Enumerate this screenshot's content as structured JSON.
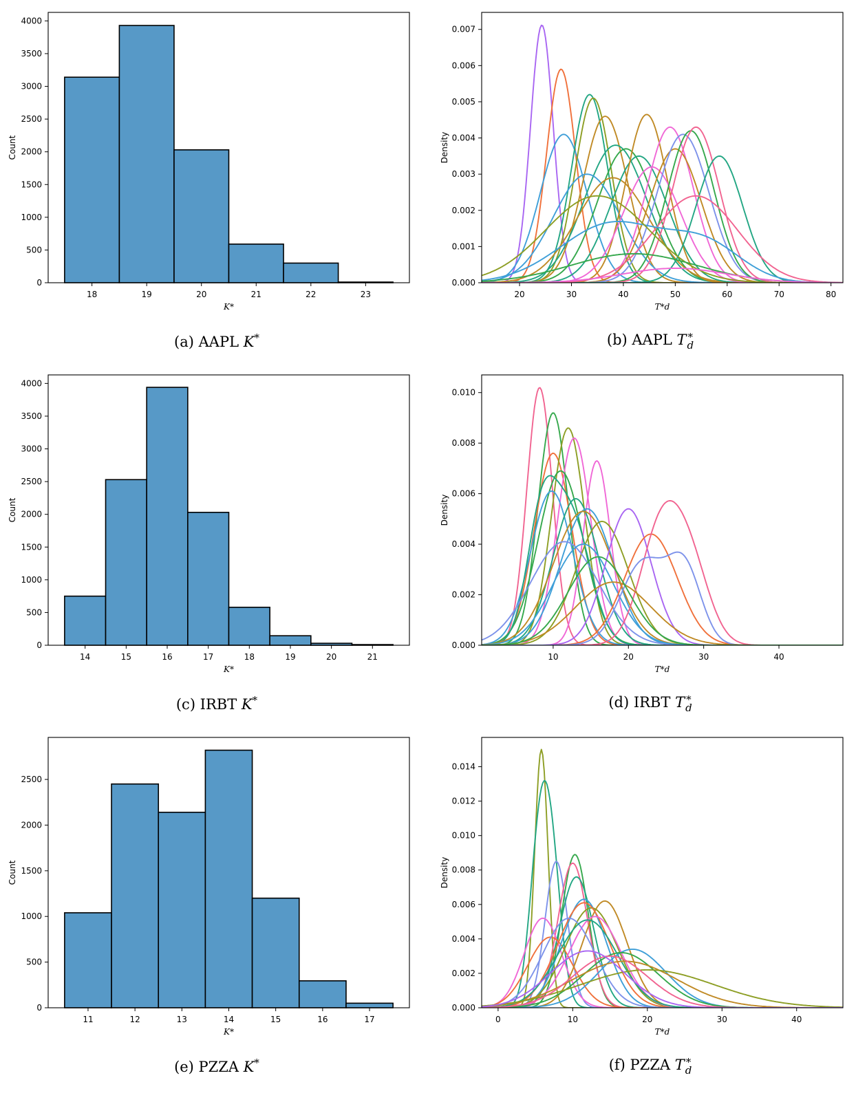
{
  "palette": [
    "#a865f2",
    "#f0703a",
    "#22a683",
    "#8d9e24",
    "#c08a25",
    "#f067d6",
    "#3f9fd8",
    "#f16390",
    "#7d92ea",
    "#35a84c"
  ],
  "bar_color": "#5799c7",
  "panels": [
    {
      "caption_prefix": "(a) AAPL",
      "caption_math": "K",
      "caption_sup": "*",
      "caption_sub": "",
      "chart_data": {
        "type": "bar",
        "title": "",
        "xlabel": "K*",
        "ylabel": "Count",
        "categories": [
          18,
          19,
          20,
          21,
          22,
          23
        ],
        "values": [
          3140,
          3930,
          2030,
          590,
          300,
          10
        ],
        "xlim": [
          17.2,
          23.8
        ],
        "ylim": [
          0,
          4130
        ],
        "xticks": [
          18,
          19,
          20,
          21,
          22,
          23
        ],
        "yticks": [
          0,
          500,
          1000,
          1500,
          2000,
          2500,
          3000,
          3500,
          4000
        ],
        "ytick_labels": [
          "0",
          "500",
          "1000",
          "1500",
          "2000",
          "2500",
          "3000",
          "3500",
          "4000"
        ],
        "grid": false
      }
    },
    {
      "caption_prefix": "(b) AAPL",
      "caption_math": "T",
      "caption_sup": "*",
      "caption_sub": "d",
      "chart_data": {
        "type": "line",
        "title": "",
        "xlabel": "T*d",
        "ylabel": "Density",
        "xlim": [
          12.7,
          82.3
        ],
        "ylim": [
          0,
          0.00747
        ],
        "xticks": [
          20,
          30,
          40,
          50,
          60,
          70,
          80
        ],
        "yticks": [
          0,
          0.001,
          0.002,
          0.003,
          0.004,
          0.005,
          0.006,
          0.007
        ],
        "ytick_labels": [
          "0.000",
          "0.001",
          "0.002",
          "0.003",
          "0.004",
          "0.005",
          "0.006",
          "0.007"
        ],
        "grid": false,
        "series": [
          {
            "color": "#a865f2",
            "components": [
              [
                24.3,
                2.2,
                0.00712
              ]
            ]
          },
          {
            "color": "#f0703a",
            "components": [
              [
                28,
                2.8,
                0.0059
              ]
            ]
          },
          {
            "color": "#3f9fd8",
            "components": [
              [
                28.5,
                4.5,
                0.0041
              ]
            ]
          },
          {
            "color": "#22a683",
            "components": [
              [
                33.5,
                3.5,
                0.0052
              ]
            ]
          },
          {
            "color": "#8d9e24",
            "components": [
              [
                34.2,
                3.5,
                0.0051
              ]
            ]
          },
          {
            "color": "#c08a25",
            "components": [
              [
                36.5,
                4.3,
                0.0046
              ]
            ]
          },
          {
            "color": "#22a683",
            "components": [
              [
                38.5,
                6,
                0.0038
              ]
            ]
          },
          {
            "color": "#35a84c",
            "components": [
              [
                40.5,
                5.5,
                0.0037
              ]
            ]
          },
          {
            "color": "#3f9fd8",
            "components": [
              [
                33,
                6.5,
                0.003
              ]
            ]
          },
          {
            "color": "#c08a25",
            "components": [
              [
                38,
                7,
                0.0029
              ]
            ]
          },
          {
            "color": "#22a683",
            "components": [
              [
                43,
                5.5,
                0.0035
              ]
            ]
          },
          {
            "color": "#c08a25",
            "components": [
              [
                44.5,
                4,
                0.00465
              ]
            ]
          },
          {
            "color": "#f067d6",
            "components": [
              [
                45.5,
                5.5,
                0.0032
              ]
            ]
          },
          {
            "color": "#f067d6",
            "components": [
              [
                49,
                4.5,
                0.0043
              ]
            ]
          },
          {
            "color": "#c08a25",
            "components": [
              [
                50,
                5,
                0.0037
              ]
            ]
          },
          {
            "color": "#7d92ea",
            "components": [
              [
                51.5,
                5,
                0.0041
              ]
            ]
          },
          {
            "color": "#35a84c",
            "components": [
              [
                53,
                4.5,
                0.0042
              ]
            ]
          },
          {
            "color": "#f16390",
            "components": [
              [
                54,
                4.5,
                0.0043
              ]
            ]
          },
          {
            "color": "#22a683",
            "components": [
              [
                58.5,
                4.5,
                0.0035
              ]
            ]
          },
          {
            "color": "#f16390",
            "components": [
              [
                54,
                8,
                0.0024
              ]
            ]
          },
          {
            "color": "#3f9fd8",
            "components": [
              [
                38,
                10,
                0.00165
              ],
              [
                56,
                7,
                0.00095
              ]
            ]
          },
          {
            "color": "#8d9e24",
            "components": [
              [
                35,
                10,
                0.0024
              ]
            ]
          },
          {
            "color": "#35a84c",
            "components": [
              [
                42,
                12,
                0.0008
              ]
            ]
          },
          {
            "color": "#f067d6",
            "components": [
              [
                50,
                10,
                0.0004
              ]
            ]
          }
        ]
      }
    },
    {
      "caption_prefix": "(c) IRBT",
      "caption_math": "K",
      "caption_sup": "*",
      "caption_sub": "",
      "chart_data": {
        "type": "bar",
        "title": "",
        "xlabel": "K*",
        "ylabel": "Count",
        "categories": [
          14,
          15,
          16,
          17,
          18,
          19,
          20,
          21
        ],
        "values": [
          750,
          2530,
          3940,
          2030,
          580,
          145,
          30,
          10
        ],
        "xlim": [
          13.1,
          21.9
        ],
        "ylim": [
          0,
          4130
        ],
        "xticks": [
          14,
          15,
          16,
          17,
          18,
          19,
          20,
          21
        ],
        "yticks": [
          0,
          500,
          1000,
          1500,
          2000,
          2500,
          3000,
          3500,
          4000
        ],
        "ytick_labels": [
          "0",
          "500",
          "1000",
          "1500",
          "2000",
          "2500",
          "3000",
          "3500",
          "4000"
        ],
        "grid": false
      }
    },
    {
      "caption_prefix": "(d) IRBT",
      "caption_math": "T",
      "caption_sup": "*",
      "caption_sub": "d",
      "chart_data": {
        "type": "line",
        "title": "",
        "xlabel": "T*d",
        "ylabel": "Density",
        "xlim": [
          0.5,
          48.5
        ],
        "ylim": [
          0,
          0.0107
        ],
        "xticks": [
          10,
          20,
          30,
          40
        ],
        "yticks": [
          0,
          0.002,
          0.004,
          0.006,
          0.008,
          0.01
        ],
        "ytick_labels": [
          "0.000",
          "0.002",
          "0.004",
          "0.006",
          "0.008",
          "0.010"
        ],
        "grid": false,
        "series": [
          {
            "color": "#f16390",
            "components": [
              [
                8.2,
                1.7,
                0.0102
              ]
            ]
          },
          {
            "color": "#35a84c",
            "components": [
              [
                10,
                2,
                0.0092
              ]
            ]
          },
          {
            "color": "#f0703a",
            "components": [
              [
                10,
                2.5,
                0.0076
              ]
            ]
          },
          {
            "color": "#8d9e24",
            "components": [
              [
                12,
                2.2,
                0.0086
              ]
            ]
          },
          {
            "color": "#f067d6",
            "components": [
              [
                12.8,
                2.2,
                0.0082
              ]
            ]
          },
          {
            "color": "#f067d6",
            "components": [
              [
                15.8,
                1.8,
                0.0073
              ]
            ]
          },
          {
            "color": "#35a84c",
            "components": [
              [
                11,
                3,
                0.0069
              ]
            ]
          },
          {
            "color": "#3f9fd8",
            "components": [
              [
                9.8,
                2.8,
                0.0061
              ]
            ]
          },
          {
            "color": "#22a683",
            "components": [
              [
                8.5,
                2,
                0.0049
              ],
              [
                12.5,
                2.5,
                0.0049
              ]
            ]
          },
          {
            "color": "#22a683",
            "components": [
              [
                13,
                3,
                0.0058
              ]
            ]
          },
          {
            "color": "#3f9fd8",
            "components": [
              [
                14.5,
                3.5,
                0.0054
              ]
            ]
          },
          {
            "color": "#c08a25",
            "components": [
              [
                14,
                4,
                0.0053
              ]
            ]
          },
          {
            "color": "#8d9e24",
            "components": [
              [
                16.5,
                3.5,
                0.0049
              ]
            ]
          },
          {
            "color": "#7d92ea",
            "components": [
              [
                11.5,
                4.5,
                0.0041
              ]
            ]
          },
          {
            "color": "#3f9fd8",
            "components": [
              [
                14,
                4,
                0.004
              ]
            ]
          },
          {
            "color": "#a865f2",
            "components": [
              [
                20,
                3,
                0.0054
              ]
            ]
          },
          {
            "color": "#f0703a",
            "components": [
              [
                23,
                3.5,
                0.0044
              ]
            ]
          },
          {
            "color": "#f16390",
            "components": [
              [
                24.5,
                2.8,
                0.0048
              ],
              [
                28.5,
                2.5,
                0.0025
              ]
            ]
          },
          {
            "color": "#7d92ea",
            "components": [
              [
                22,
                3,
                0.0033
              ],
              [
                27.5,
                2.2,
                0.0029
              ]
            ]
          },
          {
            "color": "#c08a25",
            "components": [
              [
                18,
                5,
                0.0025
              ]
            ]
          },
          {
            "color": "#35a84c",
            "components": [
              [
                16,
                4,
                0.0035
              ]
            ]
          }
        ]
      }
    },
    {
      "caption_prefix": "(e) PZZA",
      "caption_math": "K",
      "caption_sup": "*",
      "caption_sub": "",
      "chart_data": {
        "type": "bar",
        "title": "",
        "xlabel": "K*",
        "ylabel": "Count",
        "categories": [
          11,
          12,
          13,
          14,
          15,
          16,
          17
        ],
        "values": [
          1040,
          2450,
          2140,
          2820,
          1200,
          295,
          50
        ],
        "xlim": [
          10.15,
          17.85
        ],
        "ylim": [
          0,
          2960
        ],
        "xticks": [
          11,
          12,
          13,
          14,
          15,
          16,
          17
        ],
        "yticks": [
          0,
          500,
          1000,
          1500,
          2000,
          2500
        ],
        "ytick_labels": [
          "0",
          "500",
          "1000",
          "1500",
          "2000",
          "2500"
        ],
        "grid": false
      }
    },
    {
      "caption_prefix": "(f) PZZA",
      "caption_math": "T",
      "caption_sup": "*",
      "caption_sub": "d",
      "chart_data": {
        "type": "line",
        "title": "",
        "xlabel": "T*d",
        "ylabel": "Density",
        "xlim": [
          -2.2,
          46.2
        ],
        "ylim": [
          0,
          0.0157
        ],
        "xticks": [
          0,
          10,
          20,
          30,
          40
        ],
        "yticks": [
          0,
          0.002,
          0.004,
          0.006,
          0.008,
          0.01,
          0.012,
          0.014
        ],
        "ytick_labels": [
          "0.000",
          "0.002",
          "0.004",
          "0.006",
          "0.008",
          "0.010",
          "0.012",
          "0.014"
        ],
        "grid": false,
        "series": [
          {
            "color": "#8d9e24",
            "components": [
              [
                5.8,
                0.9,
                0.015
              ]
            ]
          },
          {
            "color": "#22a683",
            "components": [
              [
                5.5,
                1.3,
                0.0088
              ],
              [
                7.2,
                1.3,
                0.0075
              ]
            ]
          },
          {
            "color": "#7d92ea",
            "components": [
              [
                7.8,
                1.5,
                0.0085
              ]
            ]
          },
          {
            "color": "#35a84c",
            "components": [
              [
                10.3,
                1.8,
                0.0089
              ]
            ]
          },
          {
            "color": "#f16390",
            "components": [
              [
                10,
                2,
                0.0084
              ]
            ]
          },
          {
            "color": "#22a683",
            "components": [
              [
                10.5,
                2.3,
                0.0076
              ]
            ]
          },
          {
            "color": "#f067d6",
            "components": [
              [
                6,
                2.5,
                0.0052
              ]
            ]
          },
          {
            "color": "#f0703a",
            "components": [
              [
                7,
                3,
                0.0041
              ]
            ]
          },
          {
            "color": "#3f9fd8",
            "components": [
              [
                11.5,
                3,
                0.0063
              ]
            ]
          },
          {
            "color": "#c08a25",
            "components": [
              [
                14.3,
                3,
                0.0062
              ]
            ]
          },
          {
            "color": "#8d9e24",
            "components": [
              [
                12.5,
                3.5,
                0.0058
              ]
            ]
          },
          {
            "color": "#f0703a",
            "components": [
              [
                11.5,
                3.5,
                0.0061
              ]
            ]
          },
          {
            "color": "#f067d6",
            "components": [
              [
                13,
                3.5,
                0.0053
              ]
            ]
          },
          {
            "color": "#7d92ea",
            "components": [
              [
                9.5,
                3.5,
                0.0052
              ]
            ]
          },
          {
            "color": "#22a683",
            "components": [
              [
                12,
                4,
                0.0051
              ]
            ]
          },
          {
            "color": "#3f9fd8",
            "components": [
              [
                18,
                4.5,
                0.0034
              ]
            ]
          },
          {
            "color": "#35a84c",
            "components": [
              [
                16.5,
                5,
                0.0032
              ]
            ]
          },
          {
            "color": "#c08a25",
            "components": [
              [
                17,
                7,
                0.0027
              ]
            ]
          },
          {
            "color": "#8d9e24",
            "components": [
              [
                20,
                9,
                0.0022
              ]
            ]
          },
          {
            "color": "#f16390",
            "components": [
              [
                15,
                5,
                0.003
              ]
            ]
          },
          {
            "color": "#a865f2",
            "components": [
              [
                12,
                5,
                0.0033
              ]
            ]
          }
        ]
      }
    }
  ]
}
